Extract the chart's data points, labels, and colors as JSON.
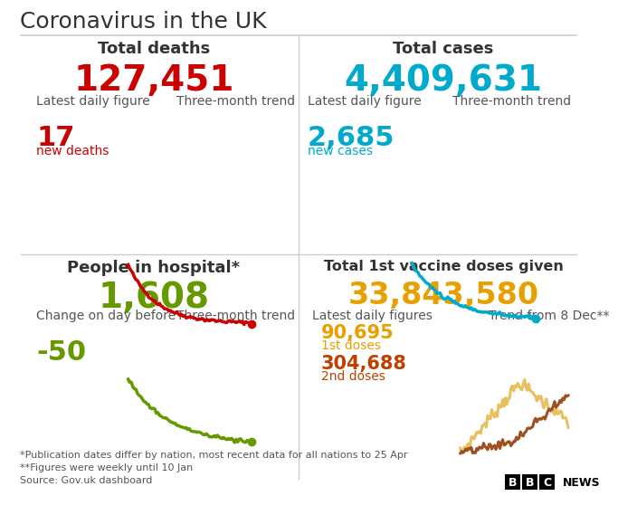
{
  "title": "Coronavirus in the UK",
  "bg_color": "#ffffff",
  "title_color": "#333333",
  "divider_color": "#cccccc",
  "deaths_total": "127,451",
  "deaths_total_color": "#cc0000",
  "deaths_label": "Total deaths",
  "deaths_daily": "17",
  "deaths_daily_label": "new deaths",
  "deaths_daily_color": "#cc0000",
  "deaths_trend_label": "Three-month trend",
  "deaths_sublabel": "Latest daily figure",
  "cases_total": "4,409,631",
  "cases_total_color": "#00aacc",
  "cases_label": "Total cases",
  "cases_daily": "2,685",
  "cases_daily_label": "new cases",
  "cases_daily_color": "#00aacc",
  "cases_trend_label": "Three-month trend",
  "cases_sublabel": "Latest daily figure",
  "hospital_total": "1,608",
  "hospital_total_color": "#669900",
  "hospital_label": "People in hospital*",
  "hospital_change": "-50",
  "hospital_change_color": "#669900",
  "hospital_change_label": "Change on day before",
  "hospital_trend_label": "Three-month trend",
  "vaccine_total": "33,843,580",
  "vaccine_total_color": "#e8a000",
  "vaccine_label": "Total 1st vaccine doses given",
  "vaccine_daily_label": "Latest daily figures",
  "vaccine_dose1": "90,695",
  "vaccine_dose1_label": "1st doses",
  "vaccine_dose1_color": "#e8a000",
  "vaccine_dose2": "304,688",
  "vaccine_dose2_label": "2nd doses",
  "vaccine_dose2_color": "#c04000",
  "vaccine_trend_label": "Trend from 8 Dec**",
  "footnote1": "*Publication dates differ by nation, most recent data for all nations to 25 Apr",
  "footnote2": "**Figures were weekly until 10 Jan",
  "footnote3": "Source: Gov.uk dashboard",
  "footnote_color": "#555555",
  "label_color": "#555555",
  "section_title_color": "#333333"
}
